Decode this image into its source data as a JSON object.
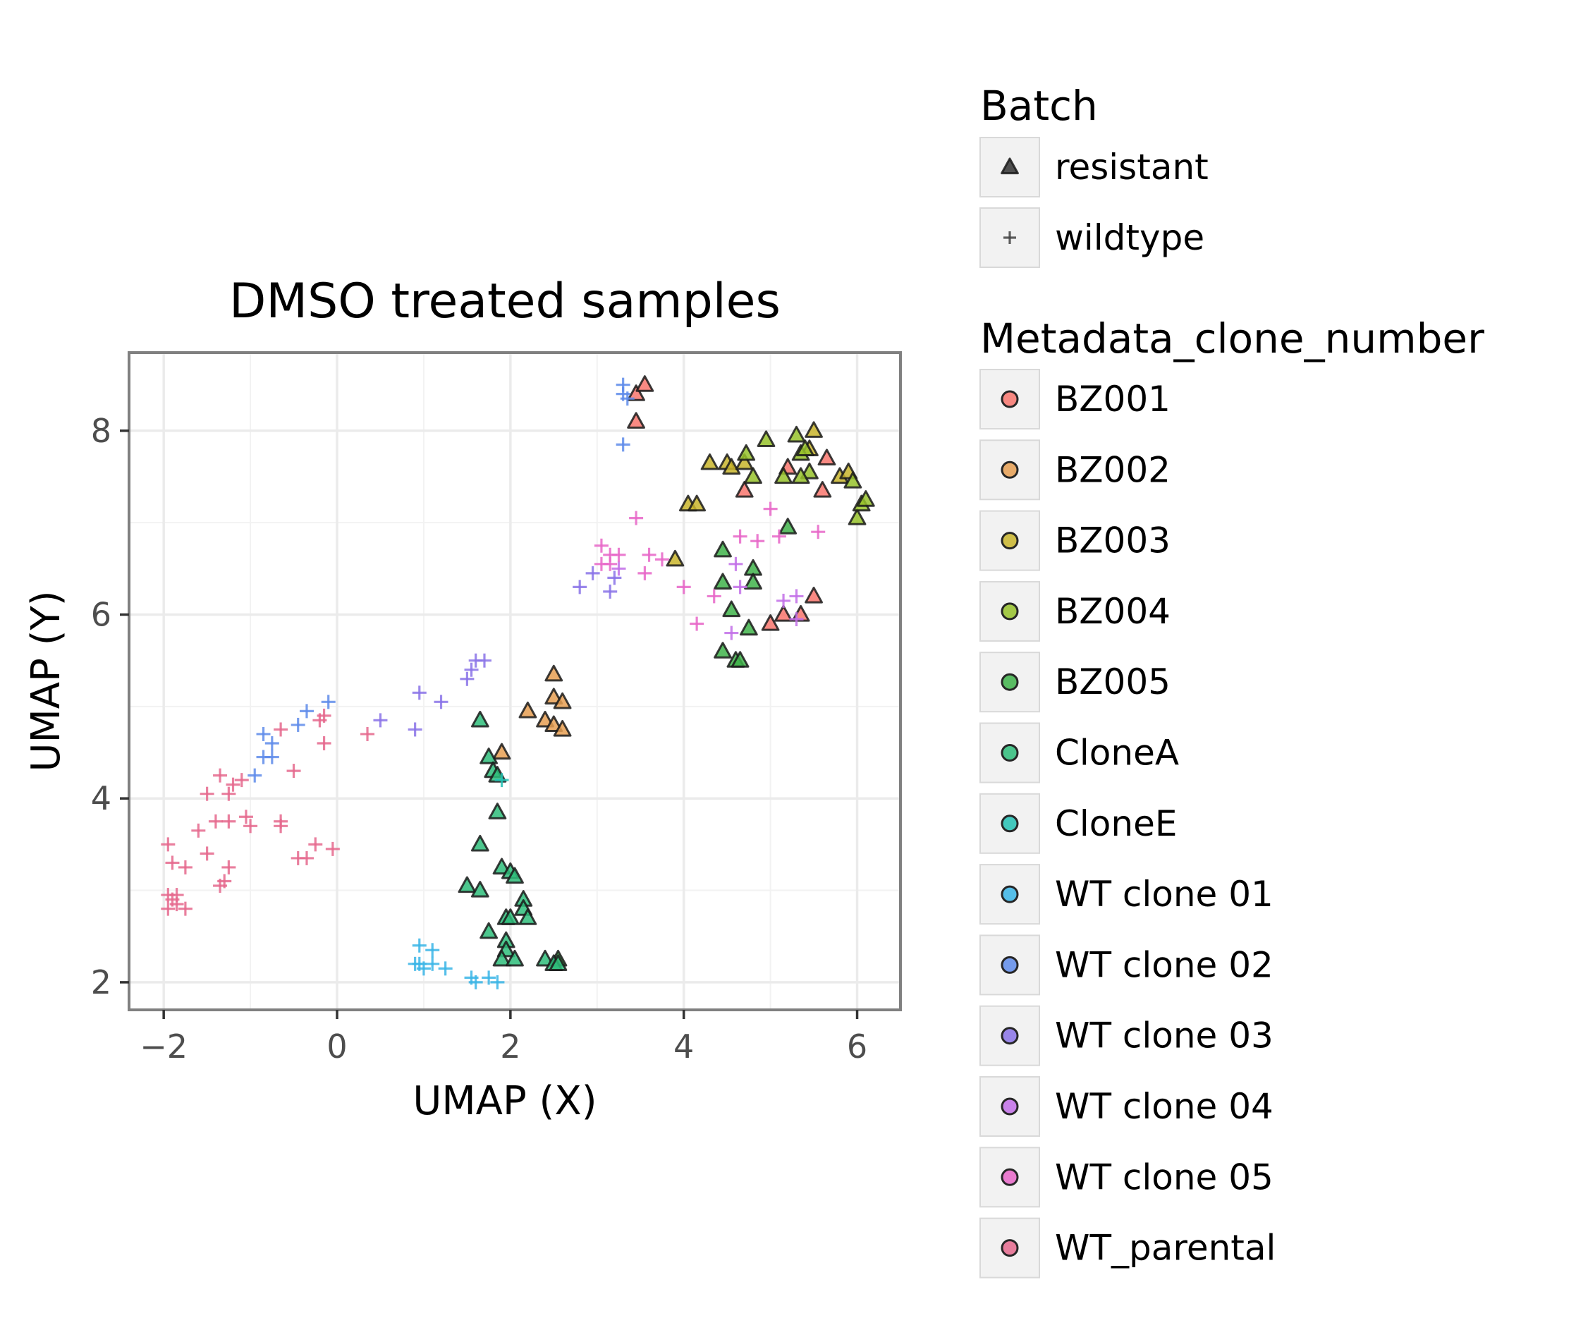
{
  "chart_data": {
    "type": "scatter",
    "title": "DMSO treated samples",
    "xlabel": "UMAP (X)",
    "ylabel": "UMAP (Y)",
    "xlim": [
      -2.4,
      6.5
    ],
    "ylim": [
      1.7,
      8.85
    ],
    "xticks": [
      -2,
      0,
      2,
      4,
      6
    ],
    "xtick_labels": [
      "−2",
      "0",
      "2",
      "4",
      "6"
    ],
    "yticks": [
      2,
      4,
      6,
      8
    ],
    "ytick_labels": [
      "2",
      "4",
      "6",
      "8"
    ],
    "grid": true,
    "legend_placement": "right",
    "shape_legend": {
      "title": "Batch",
      "items": [
        {
          "label": "resistant",
          "shape": "triangle"
        },
        {
          "label": "wildtype",
          "shape": "plus"
        }
      ]
    },
    "color_legend": {
      "title": "Metadata_clone_number",
      "items": [
        {
          "label": "BZ001",
          "color": "#F8766D"
        },
        {
          "label": "BZ002",
          "color": "#E69F52"
        },
        {
          "label": "BZ003",
          "color": "#C9B52B"
        },
        {
          "label": "BZ004",
          "color": "#97C22A"
        },
        {
          "label": "BZ005",
          "color": "#3FB34A"
        },
        {
          "label": "CloneA",
          "color": "#2EBD7A"
        },
        {
          "label": "CloneE",
          "color": "#23C1B4"
        },
        {
          "label": "WT clone 01",
          "color": "#3AB5E6"
        },
        {
          "label": "WT clone 02",
          "color": "#5F8CEA"
        },
        {
          "label": "WT clone 03",
          "color": "#8A73E8"
        },
        {
          "label": "WT clone 04",
          "color": "#C26EE8"
        },
        {
          "label": "WT clone 05",
          "color": "#E866C8"
        },
        {
          "label": "WT_parental",
          "color": "#E5698D"
        }
      ]
    },
    "series": [
      {
        "name": "BZ001",
        "shape": "triangle",
        "color": "#F8766D",
        "points": [
          [
            3.45,
            8.4
          ],
          [
            3.55,
            8.5
          ],
          [
            3.45,
            8.1
          ],
          [
            4.7,
            7.35
          ],
          [
            5.2,
            7.6
          ],
          [
            5.65,
            7.7
          ],
          [
            5.6,
            7.35
          ],
          [
            5.0,
            5.9
          ],
          [
            5.15,
            6.0
          ],
          [
            5.35,
            6.0
          ],
          [
            5.5,
            6.2
          ]
        ]
      },
      {
        "name": "BZ002",
        "shape": "triangle",
        "color": "#E69F52",
        "points": [
          [
            2.5,
            5.35
          ],
          [
            2.5,
            5.1
          ],
          [
            2.6,
            5.05
          ],
          [
            2.2,
            4.95
          ],
          [
            2.4,
            4.85
          ],
          [
            2.5,
            4.8
          ],
          [
            2.6,
            4.75
          ],
          [
            1.9,
            4.5
          ]
        ]
      },
      {
        "name": "BZ003",
        "shape": "triangle",
        "color": "#C9B52B",
        "points": [
          [
            4.3,
            7.65
          ],
          [
            4.5,
            7.65
          ],
          [
            4.55,
            7.6
          ],
          [
            4.7,
            7.65
          ],
          [
            4.05,
            7.2
          ],
          [
            4.15,
            7.2
          ],
          [
            3.9,
            6.6
          ],
          [
            5.5,
            8.0
          ],
          [
            5.8,
            7.5
          ],
          [
            5.9,
            7.55
          ],
          [
            5.45,
            7.8
          ]
        ]
      },
      {
        "name": "BZ004",
        "shape": "triangle",
        "color": "#97C22A",
        "points": [
          [
            4.72,
            7.75
          ],
          [
            4.8,
            7.5
          ],
          [
            4.95,
            7.9
          ],
          [
            5.15,
            7.5
          ],
          [
            5.3,
            7.95
          ],
          [
            5.35,
            7.75
          ],
          [
            5.4,
            7.8
          ],
          [
            5.45,
            7.55
          ],
          [
            5.95,
            7.45
          ],
          [
            6.0,
            7.05
          ],
          [
            6.05,
            7.2
          ],
          [
            6.1,
            7.25
          ],
          [
            5.35,
            7.5
          ]
        ]
      },
      {
        "name": "BZ005",
        "shape": "triangle",
        "color": "#3FB34A",
        "points": [
          [
            4.45,
            6.7
          ],
          [
            4.45,
            6.35
          ],
          [
            4.55,
            6.05
          ],
          [
            4.45,
            5.6
          ],
          [
            4.6,
            5.5
          ],
          [
            4.65,
            5.5
          ],
          [
            4.75,
            5.85
          ],
          [
            4.8,
            6.5
          ],
          [
            4.8,
            6.35
          ],
          [
            5.2,
            6.95
          ],
          [
            2.55,
            2.25
          ]
        ]
      },
      {
        "name": "CloneA",
        "shape": "triangle",
        "color": "#2EBD7A",
        "points": [
          [
            1.65,
            4.85
          ],
          [
            1.75,
            4.45
          ],
          [
            1.8,
            4.3
          ],
          [
            1.85,
            4.25
          ],
          [
            1.85,
            3.85
          ],
          [
            1.65,
            3.5
          ],
          [
            1.5,
            3.05
          ],
          [
            1.65,
            3.0
          ],
          [
            1.9,
            3.25
          ],
          [
            2.0,
            3.2
          ],
          [
            2.05,
            3.15
          ],
          [
            2.15,
            2.9
          ],
          [
            2.15,
            2.8
          ],
          [
            2.2,
            2.7
          ],
          [
            1.95,
            2.7
          ],
          [
            2.0,
            2.7
          ],
          [
            1.75,
            2.55
          ],
          [
            1.95,
            2.45
          ],
          [
            1.95,
            2.35
          ],
          [
            1.9,
            2.25
          ],
          [
            2.05,
            2.25
          ],
          [
            2.4,
            2.25
          ],
          [
            2.5,
            2.2
          ],
          [
            2.55,
            2.2
          ]
        ]
      },
      {
        "name": "CloneE",
        "shape": "plus",
        "color": "#23C1B4",
        "points": [
          [
            1.9,
            4.2
          ]
        ]
      },
      {
        "name": "WT clone 01",
        "shape": "plus",
        "color": "#3AB5E6",
        "points": [
          [
            0.95,
            2.4
          ],
          [
            1.1,
            2.35
          ],
          [
            0.9,
            2.2
          ],
          [
            0.95,
            2.2
          ],
          [
            1.1,
            2.2
          ],
          [
            1.25,
            2.15
          ],
          [
            1.55,
            2.05
          ],
          [
            1.6,
            2.0
          ],
          [
            1.75,
            2.05
          ],
          [
            1.85,
            2.0
          ],
          [
            1.0,
            2.15
          ]
        ]
      },
      {
        "name": "WT clone 02",
        "shape": "plus",
        "color": "#5F8CEA",
        "points": [
          [
            3.3,
            8.5
          ],
          [
            3.3,
            8.4
          ],
          [
            3.35,
            8.35
          ],
          [
            3.3,
            7.85
          ],
          [
            -0.1,
            5.05
          ],
          [
            -0.35,
            4.95
          ],
          [
            -0.45,
            4.8
          ],
          [
            -0.85,
            4.7
          ],
          [
            -0.75,
            4.6
          ],
          [
            -0.85,
            4.45
          ],
          [
            -0.75,
            4.45
          ],
          [
            -0.95,
            4.25
          ]
        ]
      },
      {
        "name": "WT clone 03",
        "shape": "plus",
        "color": "#8A73E8",
        "points": [
          [
            1.6,
            5.5
          ],
          [
            1.7,
            5.5
          ],
          [
            1.55,
            5.4
          ],
          [
            1.5,
            5.3
          ],
          [
            0.95,
            5.15
          ],
          [
            1.2,
            5.05
          ],
          [
            0.9,
            4.75
          ],
          [
            0.5,
            4.85
          ],
          [
            2.8,
            6.3
          ],
          [
            2.95,
            6.45
          ],
          [
            3.15,
            6.25
          ],
          [
            3.2,
            6.4
          ]
        ]
      },
      {
        "name": "WT clone 04",
        "shape": "plus",
        "color": "#C26EE8",
        "points": [
          [
            3.25,
            6.5
          ],
          [
            4.6,
            6.55
          ],
          [
            4.65,
            6.3
          ],
          [
            4.55,
            5.8
          ],
          [
            5.15,
            6.15
          ],
          [
            5.3,
            6.2
          ],
          [
            5.3,
            5.95
          ]
        ]
      },
      {
        "name": "WT clone 05",
        "shape": "plus",
        "color": "#E866C8",
        "points": [
          [
            3.45,
            7.05
          ],
          [
            3.05,
            6.75
          ],
          [
            3.15,
            6.65
          ],
          [
            3.05,
            6.55
          ],
          [
            3.15,
            6.55
          ],
          [
            3.25,
            6.65
          ],
          [
            3.6,
            6.65
          ],
          [
            3.75,
            6.6
          ],
          [
            3.55,
            6.45
          ],
          [
            4.0,
            6.3
          ],
          [
            4.15,
            5.9
          ],
          [
            4.35,
            6.2
          ],
          [
            4.65,
            6.85
          ],
          [
            4.85,
            6.8
          ],
          [
            5.0,
            7.15
          ],
          [
            5.1,
            6.85
          ],
          [
            5.55,
            6.9
          ]
        ]
      },
      {
        "name": "WT_parental",
        "shape": "plus",
        "color": "#E5698D",
        "points": [
          [
            -0.15,
            4.9
          ],
          [
            -0.2,
            4.85
          ],
          [
            -0.15,
            4.6
          ],
          [
            -0.65,
            4.75
          ],
          [
            0.35,
            4.7
          ],
          [
            -1.35,
            4.25
          ],
          [
            -1.2,
            4.15
          ],
          [
            -1.1,
            4.2
          ],
          [
            -1.25,
            4.05
          ],
          [
            -1.5,
            4.05
          ],
          [
            -0.5,
            4.3
          ],
          [
            -1.4,
            3.75
          ],
          [
            -1.25,
            3.75
          ],
          [
            -1.05,
            3.8
          ],
          [
            -0.65,
            3.75
          ],
          [
            -0.65,
            3.7
          ],
          [
            -1.0,
            3.7
          ],
          [
            -1.6,
            3.65
          ],
          [
            -1.5,
            3.4
          ],
          [
            -0.45,
            3.35
          ],
          [
            -0.35,
            3.35
          ],
          [
            -0.25,
            3.5
          ],
          [
            -0.05,
            3.45
          ],
          [
            -1.95,
            3.5
          ],
          [
            -1.9,
            3.3
          ],
          [
            -1.75,
            3.25
          ],
          [
            -1.25,
            3.25
          ],
          [
            -1.3,
            3.1
          ],
          [
            -1.35,
            3.05
          ],
          [
            -1.95,
            2.95
          ],
          [
            -1.85,
            2.95
          ],
          [
            -1.9,
            2.9
          ],
          [
            -1.85,
            2.85
          ],
          [
            -1.95,
            2.8
          ],
          [
            -1.75,
            2.8
          ]
        ]
      }
    ]
  }
}
